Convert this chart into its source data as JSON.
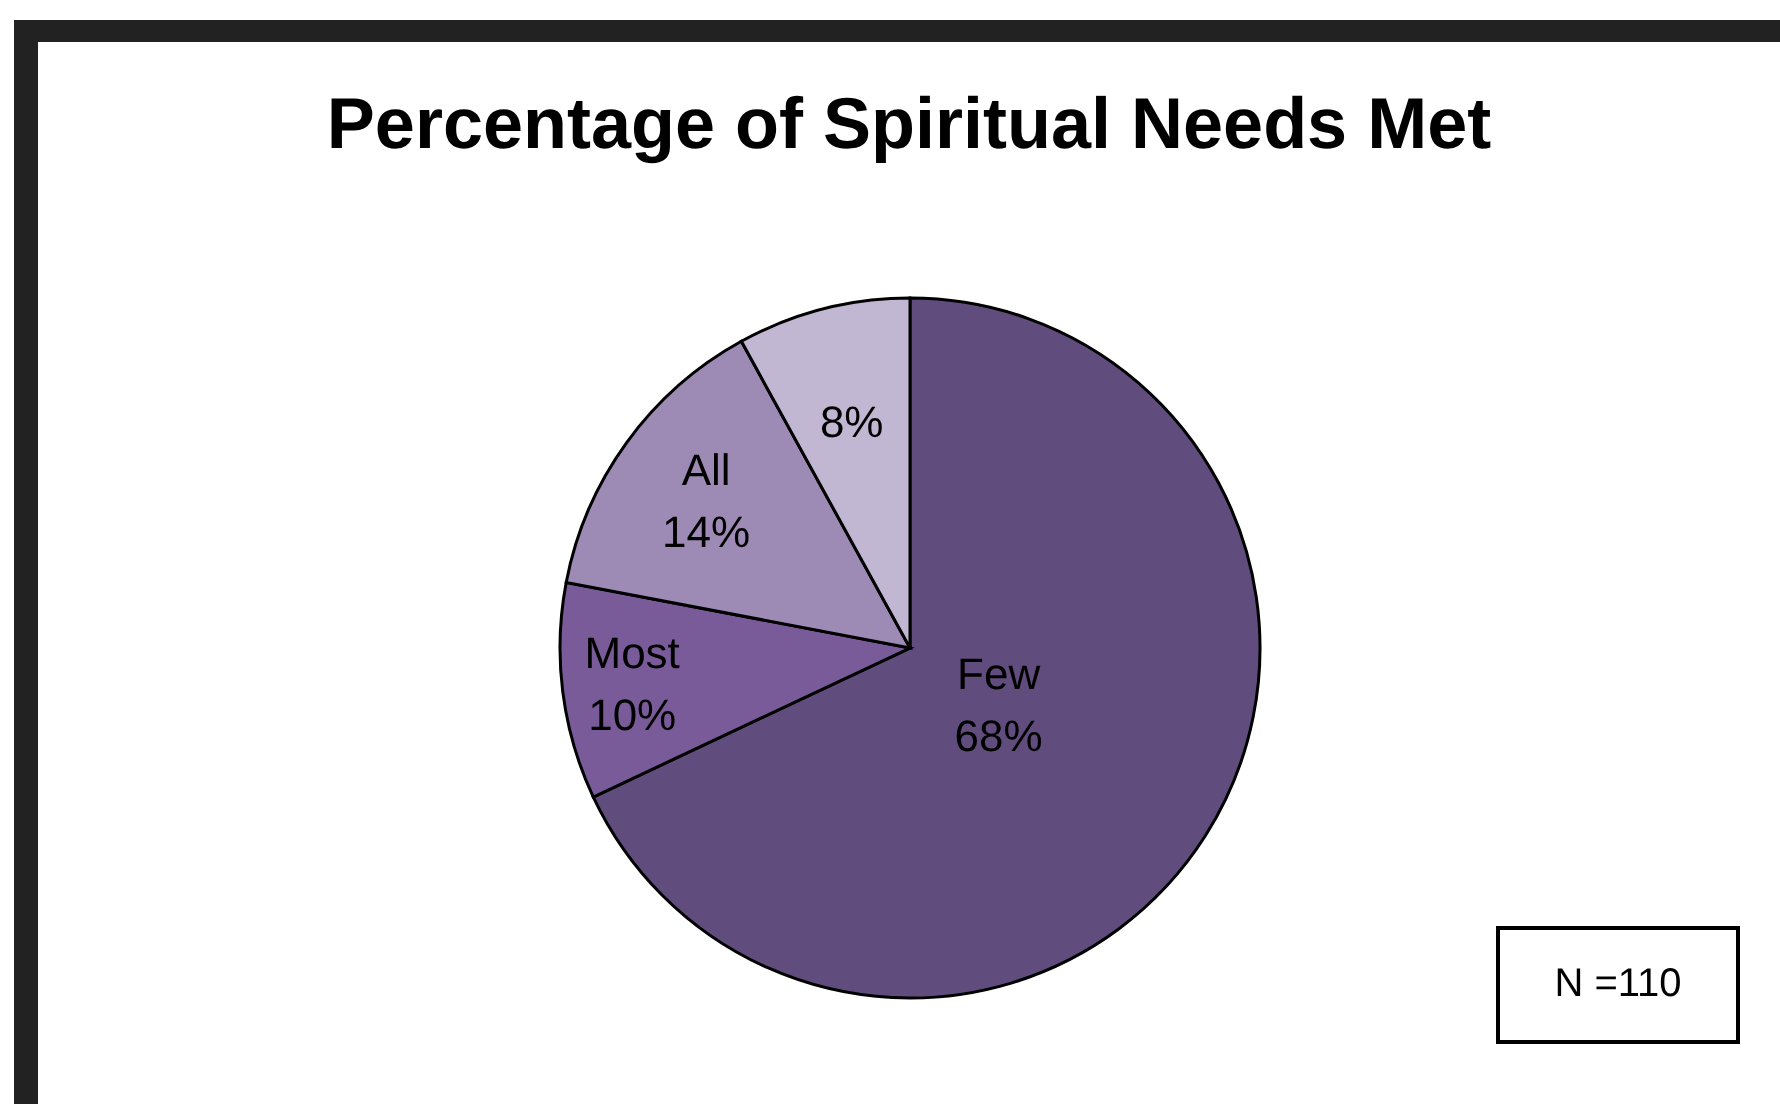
{
  "chart_data": {
    "type": "pie",
    "title": "Percentage of Spiritual Needs Met",
    "categories": [
      "Few",
      "Most",
      "All",
      null
    ],
    "values": [
      68,
      10,
      14,
      8
    ],
    "colors": [
      "#614d7d",
      "#795b99",
      "#9d8ab5",
      "#c2b7d3"
    ],
    "value_labels": [
      "68%",
      "10%",
      "14%",
      "8%"
    ],
    "annotations": [
      "N =110"
    ]
  }
}
